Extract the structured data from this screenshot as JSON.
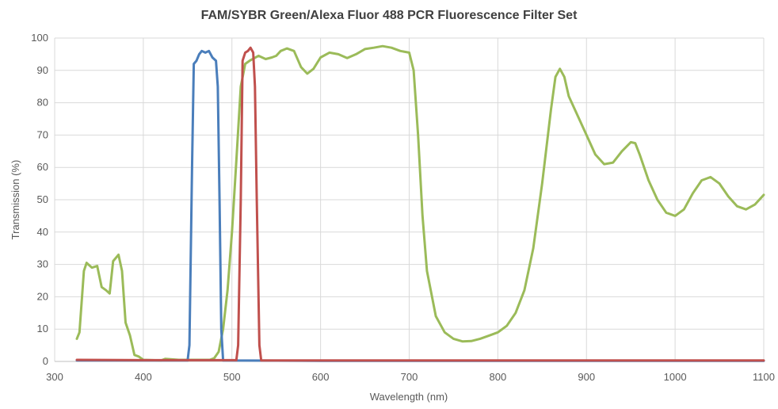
{
  "chart_data": {
    "type": "line",
    "title": "FAM/SYBR Green/Alexa Fluor 488 PCR Fluorescence Filter Set",
    "xlabel": "Wavelength (nm)",
    "ylabel": "Transmission (%)",
    "xlim": [
      300,
      1100
    ],
    "ylim": [
      0,
      100
    ],
    "xticks": [
      "300",
      "400",
      "500",
      "600",
      "700",
      "800",
      "900",
      "1000",
      "1100"
    ],
    "yticks": [
      "0",
      "10",
      "20",
      "30",
      "40",
      "50",
      "60",
      "70",
      "80",
      "90",
      "100"
    ],
    "grid": true,
    "series": [
      {
        "color": "#9bbb59",
        "x": [
          325,
          328,
          333,
          336,
          342,
          348,
          353,
          358,
          362,
          366,
          372,
          376,
          380,
          385,
          390,
          395,
          400,
          420,
          425,
          440,
          460,
          475,
          480,
          485,
          490,
          495,
          500,
          505,
          510,
          515,
          520,
          530,
          538,
          545,
          550,
          555,
          562,
          570,
          578,
          585,
          592,
          600,
          610,
          620,
          630,
          640,
          650,
          660,
          670,
          680,
          690,
          700,
          705,
          710,
          715,
          720,
          730,
          740,
          750,
          760,
          770,
          780,
          790,
          800,
          810,
          820,
          830,
          840,
          850,
          860,
          865,
          870,
          875,
          880,
          890,
          900,
          910,
          920,
          930,
          940,
          950,
          955,
          960,
          970,
          980,
          990,
          1000,
          1010,
          1020,
          1030,
          1040,
          1050,
          1060,
          1070,
          1080,
          1090,
          1100
        ],
        "y": [
          7,
          9,
          28,
          30.5,
          29,
          29.5,
          23,
          22,
          21,
          31,
          33,
          28,
          12,
          8,
          2,
          1.5,
          0.5,
          0.3,
          0.8,
          0.5,
          0.5,
          0.5,
          1,
          3,
          10,
          22,
          40,
          62,
          85,
          92,
          93,
          94.5,
          93.5,
          94,
          94.5,
          96,
          96.8,
          96,
          91,
          89,
          90.5,
          94,
          95.5,
          95,
          93.8,
          95,
          96.6,
          97,
          97.5,
          97,
          96,
          95.5,
          90,
          70,
          45,
          28,
          14,
          9,
          7,
          6.2,
          6.3,
          7,
          8,
          9,
          11,
          15,
          22,
          35,
          55,
          78,
          88,
          90.5,
          88,
          82,
          76,
          70,
          64,
          61,
          61.5,
          65,
          67.8,
          67.5,
          64,
          56,
          50,
          46,
          45,
          47,
          52,
          56,
          57,
          55,
          51,
          48,
          47,
          48.5,
          51.5
        ]
      },
      {
        "color": "#4a7ebb",
        "x": [
          325,
          400,
          450,
          452,
          455,
          457,
          460,
          463,
          466,
          470,
          474,
          478,
          482,
          484,
          486,
          488,
          490,
          600,
          1100
        ],
        "y": [
          0.3,
          0.3,
          0.3,
          5,
          60,
          92,
          93,
          95,
          96,
          95.5,
          96,
          94,
          93,
          85,
          50,
          10,
          0.3,
          0.2,
          0.2
        ]
      },
      {
        "color": "#c0504d",
        "x": [
          325,
          400,
          505,
          507,
          510,
          512,
          515,
          518,
          521,
          524,
          526,
          528,
          531,
          533,
          700,
          1100
        ],
        "y": [
          0.5,
          0.4,
          0.4,
          5,
          50,
          93,
          95.5,
          96,
          97,
          95.5,
          85,
          50,
          5,
          0.3,
          0.3,
          0.3
        ]
      }
    ]
  }
}
